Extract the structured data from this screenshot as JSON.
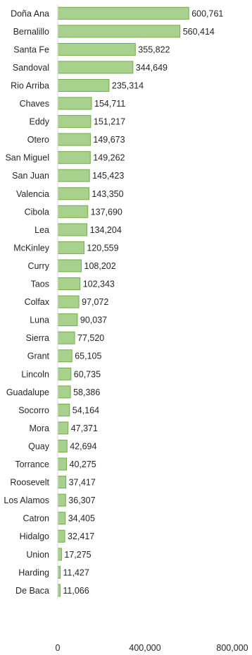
{
  "chart_data": {
    "type": "bar",
    "orientation": "horizontal",
    "categories": [
      "Doña Ana",
      "Bernalillo",
      "Santa Fe",
      "Sandoval",
      "Rio Arriba",
      "Chaves",
      "Eddy",
      "Otero",
      "San Miguel",
      "San Juan",
      "Valencia",
      "Cibola",
      "Lea",
      "McKinley",
      "Curry",
      "Taos",
      "Colfax",
      "Luna",
      "Sierra",
      "Grant",
      "Lincoln",
      "Guadalupe",
      "Socorro",
      "Mora",
      "Quay",
      "Torrance",
      "Roosevelt",
      "Los Alamos",
      "Catron",
      "Hidalgo",
      "Union",
      "Harding",
      "De Baca"
    ],
    "values": [
      600761,
      560414,
      355822,
      344649,
      235314,
      154711,
      151217,
      149673,
      149262,
      145423,
      143350,
      137690,
      134204,
      120559,
      108202,
      102343,
      97072,
      90037,
      77520,
      65105,
      60735,
      58386,
      54164,
      47371,
      42694,
      40275,
      37417,
      36307,
      34405,
      32417,
      17275,
      11427,
      11066
    ],
    "value_labels": [
      "600,761",
      "560,414",
      "355,822",
      "344,649",
      "235,314",
      "154,711",
      "151,217",
      "149,673",
      "149,262",
      "145,423",
      "143,350",
      "137,690",
      "134,204",
      "120,559",
      "108,202",
      "102,343",
      "97,072",
      "90,037",
      "77,520",
      "65,105",
      "60,735",
      "58,386",
      "54,164",
      "47,371",
      "42,694",
      "40,275",
      "37,417",
      "36,307",
      "34,405",
      "32,417",
      "17,275",
      "11,427",
      "11,066"
    ],
    "xlim": [
      0,
      800000
    ],
    "xticks": [
      0,
      400000,
      800000
    ],
    "xtick_labels": [
      "0",
      "400,000",
      "800,000"
    ],
    "bar_color": "#a9d18e",
    "bar_edge_color": "#70ad47",
    "axis_color": "#d9d9d9",
    "grid": false,
    "legend": "none"
  }
}
